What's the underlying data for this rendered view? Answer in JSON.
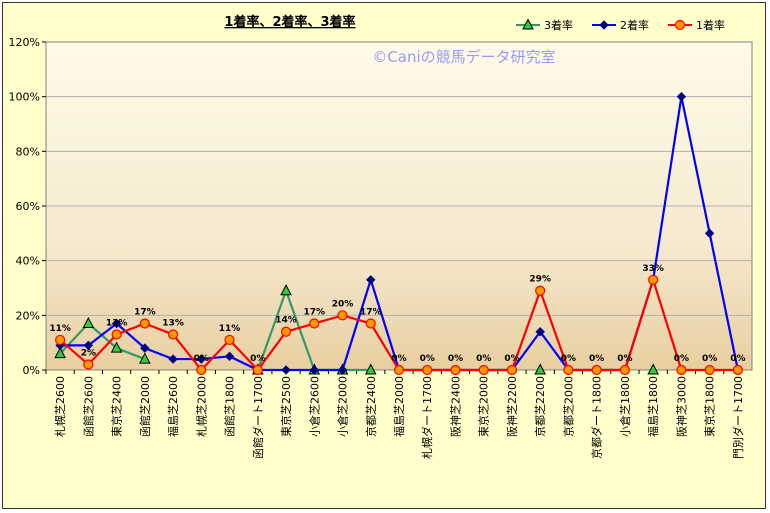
{
  "chart_data": {
    "type": "line",
    "title": "1着率、2着率、3着率",
    "watermark": "©Caniの競馬データ研究室",
    "categories": [
      "札幌芝2600",
      "函館芝2600",
      "東京芝2400",
      "函館芝2000",
      "福島芝2600",
      "札幌芝2000",
      "函館芝1800",
      "函館ダート1700",
      "東京芝2500",
      "小倉芝2600",
      "小倉芝2000",
      "京都芝2400",
      "福島芝2000",
      "札幌ダート1700",
      "阪神芝2400",
      "東京芝2000",
      "阪神芝2200",
      "京都芝2200",
      "京都芝2000",
      "京都ダート1800",
      "小倉芝1800",
      "福島芝1800",
      "阪神芝3000",
      "東京芝1800",
      "門別ダート1700"
    ],
    "ylim": [
      0,
      120
    ],
    "yticks": [
      "0%",
      "20%",
      "40%",
      "60%",
      "80%",
      "100%",
      "120%"
    ],
    "legend_position": "top-right",
    "series": [
      {
        "name": "3着率",
        "color": "#339966",
        "marker": "triangle",
        "marker_fill": "#33cc33",
        "values": [
          6,
          17,
          8,
          4,
          null,
          null,
          null,
          0,
          29,
          0,
          0,
          0,
          null,
          null,
          null,
          null,
          null,
          0,
          null,
          null,
          null,
          0,
          null,
          null,
          null
        ]
      },
      {
        "name": "2着率",
        "color": "#0000ff",
        "marker": "diamond",
        "marker_fill": "#000080",
        "values": [
          9,
          9,
          17,
          8,
          4,
          4,
          5,
          0,
          0,
          0,
          0,
          33,
          0,
          0,
          0,
          0,
          0,
          14,
          0,
          0,
          0,
          33,
          100,
          50,
          0
        ]
      },
      {
        "name": "1着率",
        "color": "#ff0000",
        "marker": "circle",
        "marker_fill": "#ff9900",
        "values": [
          11,
          2,
          13,
          17,
          13,
          0,
          11,
          0,
          14,
          17,
          20,
          17,
          0,
          0,
          0,
          0,
          0,
          29,
          0,
          0,
          0,
          33,
          0,
          0,
          0
        ]
      }
    ],
    "data_labels": [
      "11%",
      "2%",
      "13%",
      "17%",
      "13%",
      "0%",
      "11%",
      "0%",
      "14%",
      "17%",
      "20%",
      "17%",
      "0%",
      "0%",
      "0%",
      "0%",
      "0%",
      "29%",
      "0%",
      "0%",
      "0%",
      "33%",
      "0%",
      "0%",
      "0%"
    ]
  }
}
